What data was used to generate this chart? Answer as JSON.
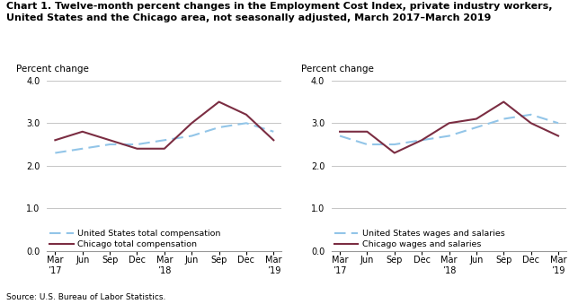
{
  "title_line1": "Chart 1. Twelve-month percent changes in the Employment Cost Index, private industry workers,",
  "title_line2": "United States and the Chicago area, not seasonally adjusted, March 2017–March 2019",
  "source": "Source: U.S. Bureau of Labor Statistics.",
  "ylabel": "Percent change",
  "x_labels": [
    "Mar\n’17",
    "Jun",
    "Sep",
    "Dec",
    "Mar\n’18",
    "Jun",
    "Sep",
    "Dec",
    "Mar\n’19"
  ],
  "ylim": [
    0.0,
    4.0
  ],
  "yticks": [
    0.0,
    1.0,
    2.0,
    3.0,
    4.0
  ],
  "left": {
    "us_label": "United States total compensation",
    "chicago_label": "Chicago total compensation",
    "us_values": [
      2.3,
      2.4,
      2.5,
      2.5,
      2.6,
      2.7,
      2.9,
      3.0,
      2.8
    ],
    "chicago_values": [
      2.6,
      2.8,
      2.6,
      2.4,
      2.4,
      3.0,
      3.5,
      3.2,
      2.6
    ]
  },
  "right": {
    "us_label": "United States wages and salaries",
    "chicago_label": "Chicago wages and salaries",
    "us_values": [
      2.7,
      2.5,
      2.5,
      2.6,
      2.7,
      2.9,
      3.1,
      3.2,
      3.0
    ],
    "chicago_values": [
      2.8,
      2.8,
      2.3,
      2.6,
      3.0,
      3.1,
      3.5,
      3.0,
      2.7
    ]
  },
  "us_color": "#92C5E8",
  "chicago_color": "#7B2D42",
  "grid_color": "#bbbbbb",
  "spine_color": "#999999",
  "background_color": "#ffffff",
  "title_fontsize": 8.0,
  "label_fontsize": 7.5,
  "tick_fontsize": 7.0,
  "legend_fontsize": 6.8,
  "line_width": 1.5
}
